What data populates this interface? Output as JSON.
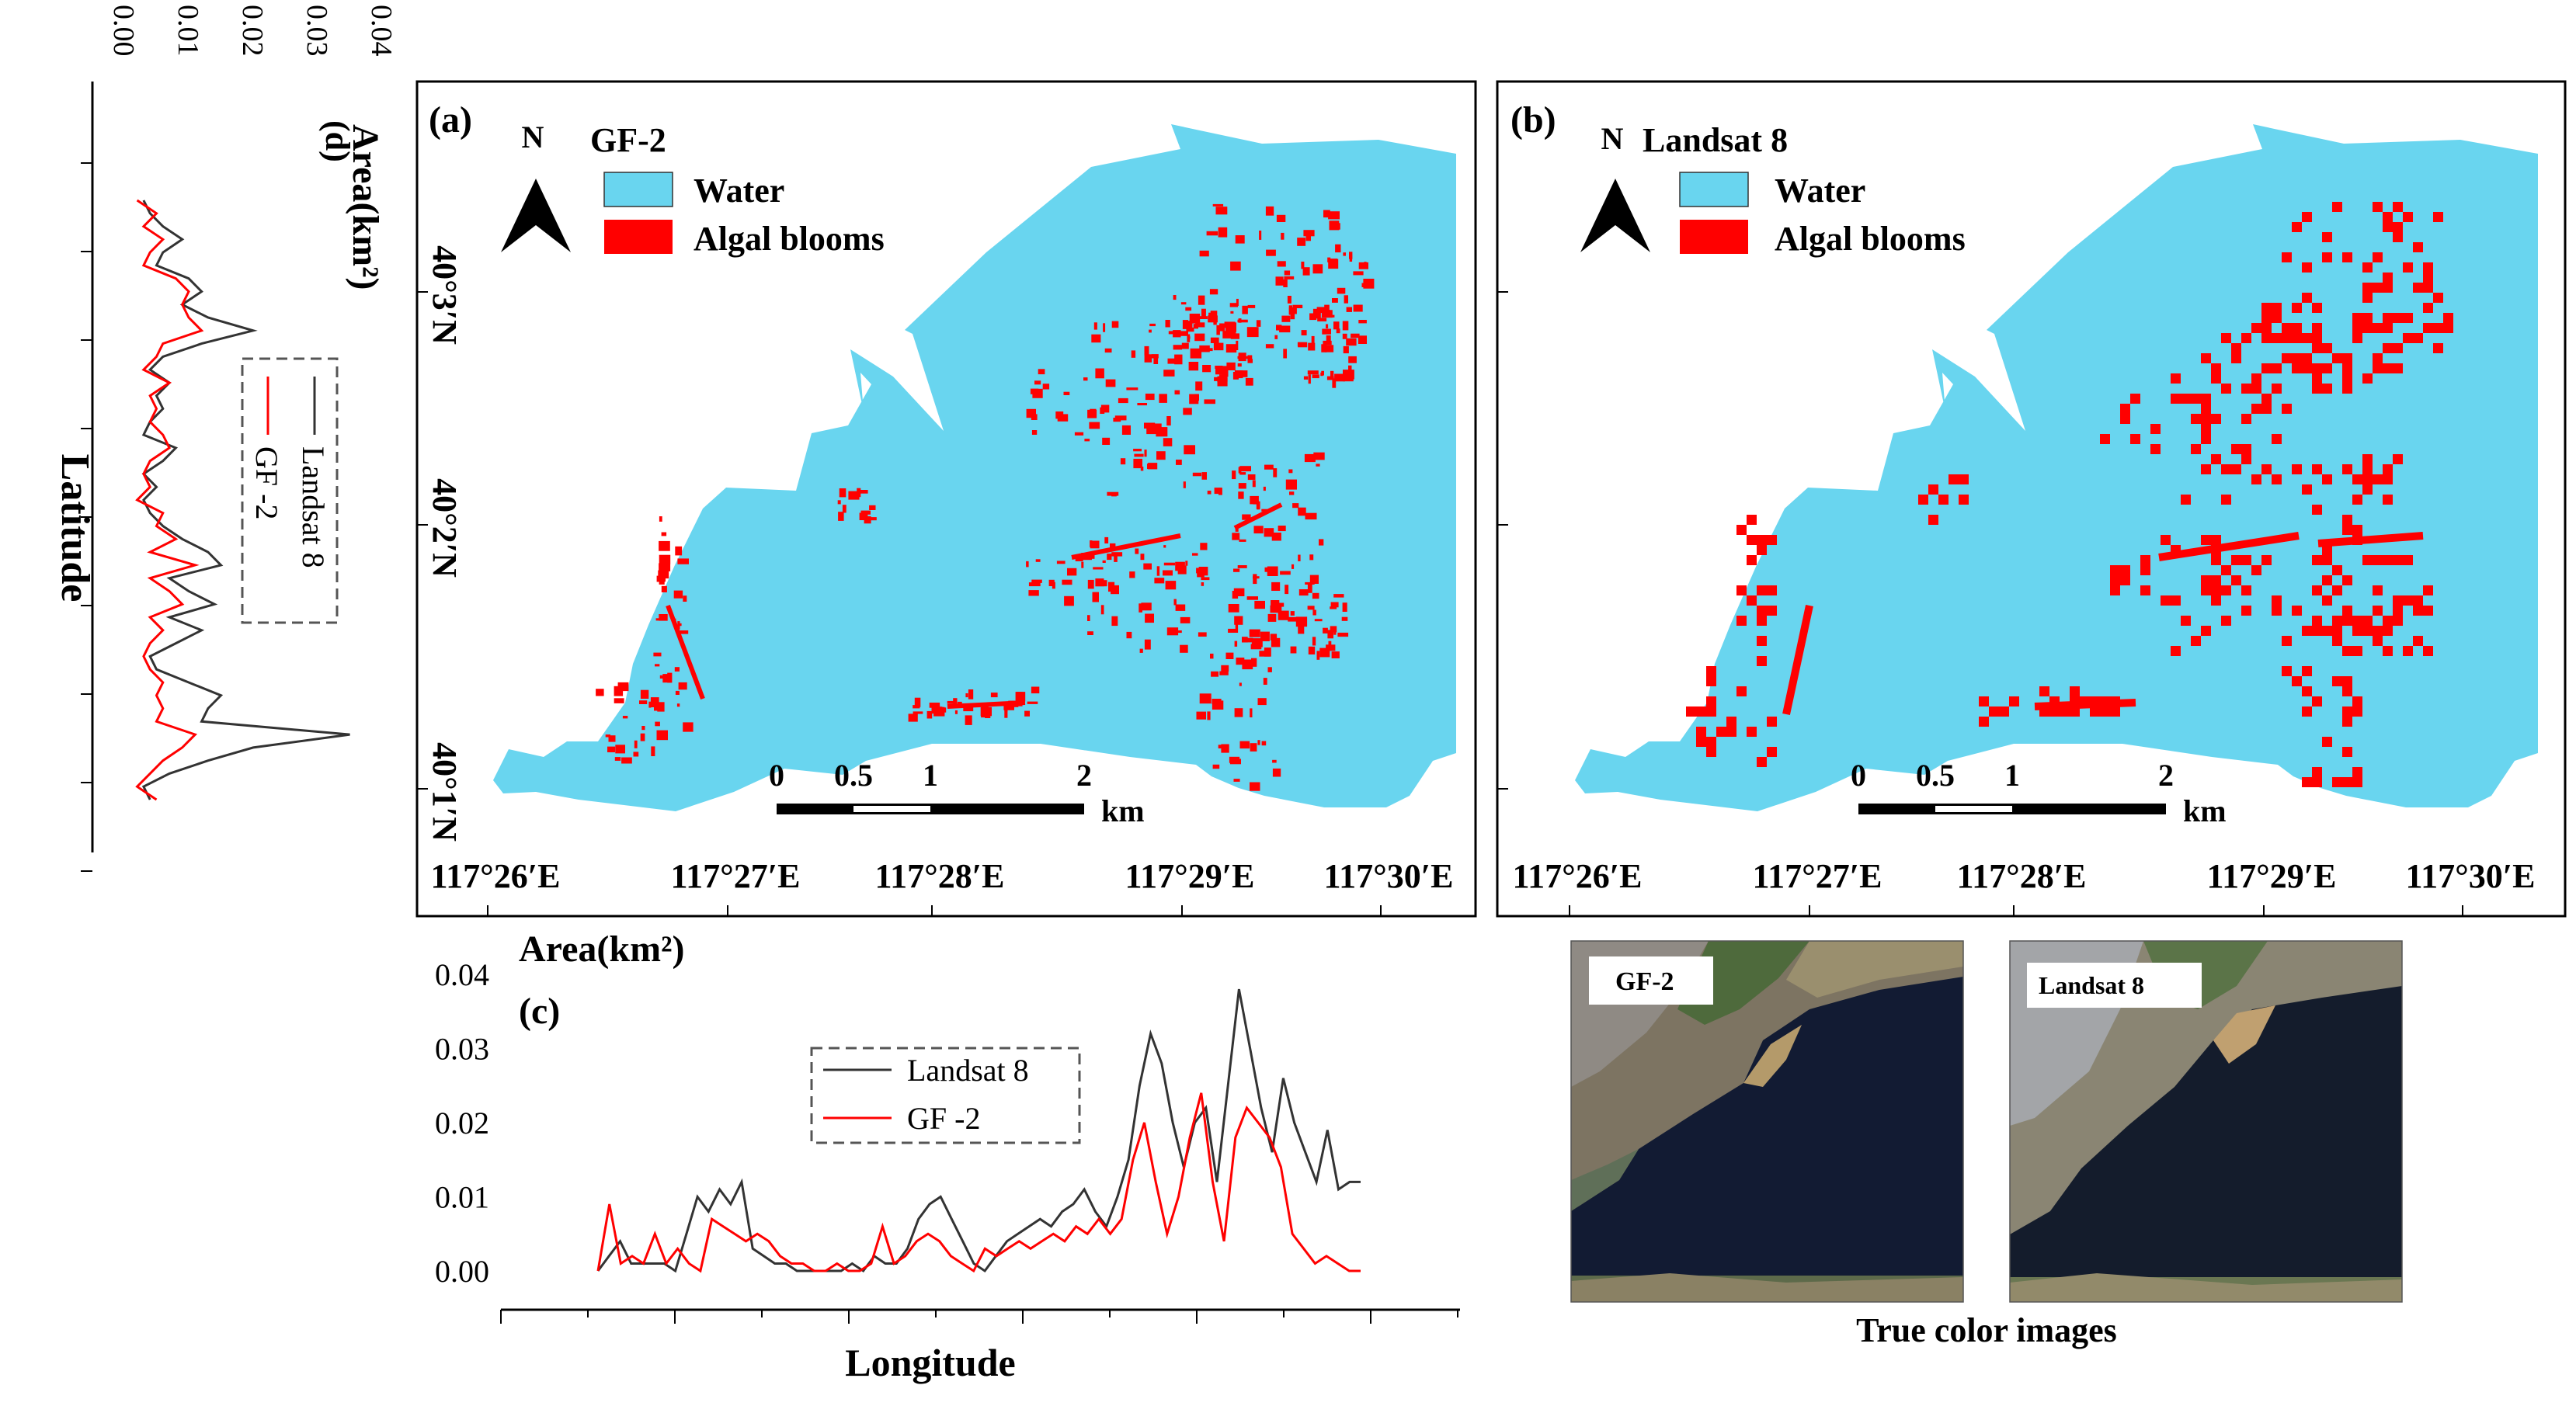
{
  "panel_a": {
    "label": "(a)",
    "north": "N",
    "sensor": "GF-2",
    "legend": [
      {
        "label": "Water",
        "color": "#69d5ef"
      },
      {
        "label": "Algal blooms",
        "color": "#ff0000"
      }
    ]
  },
  "panel_b": {
    "label": "(b)",
    "north": "N",
    "sensor": "Landsat 8",
    "legend": [
      {
        "label": "Water",
        "color": "#69d5ef"
      },
      {
        "label": "Algal blooms",
        "color": "#ff0000"
      }
    ]
  },
  "map_axes": {
    "lon_ticks": [
      "117°26′E",
      "117°27′E",
      "117°28′E",
      "117°29′E",
      "117°30′E"
    ],
    "lat_ticks": [
      "40°3′N",
      "40°2′N",
      "40°1′N"
    ]
  },
  "scale_bar": {
    "ticks": [
      "0",
      "0.5",
      "1",
      "2"
    ],
    "values_km": [
      0,
      0.5,
      1,
      2
    ],
    "unit": "km"
  },
  "true_color": {
    "caption": "True color images",
    "images": [
      "GF-2",
      "Landsat 8"
    ]
  },
  "colors": {
    "water": "#69d5ef",
    "algae": "#ff0000",
    "landsat_line": "#333333",
    "gf2_line": "#ff0000"
  },
  "chart_data": [
    {
      "id": "c",
      "label": "(c)",
      "type": "line",
      "xlabel": "Longitude",
      "ylabel": "Area(km²)",
      "ylim": [
        0,
        0.04
      ],
      "yticks": [
        "0.00",
        "0.01",
        "0.02",
        "0.03",
        "0.04"
      ],
      "legend": "top-center, dashed box",
      "series": [
        {
          "name": "Landsat 8",
          "color": "#333333",
          "values": [
            0.0,
            0.002,
            0.004,
            0.001,
            0.001,
            0.001,
            0.001,
            0.0,
            0.005,
            0.01,
            0.008,
            0.011,
            0.009,
            0.012,
            0.003,
            0.002,
            0.001,
            0.001,
            0.0,
            0.0,
            0.0,
            0.0,
            0.0,
            0.001,
            0.0,
            0.002,
            0.001,
            0.001,
            0.003,
            0.007,
            0.009,
            0.01,
            0.007,
            0.004,
            0.001,
            0.0,
            0.002,
            0.004,
            0.005,
            0.006,
            0.007,
            0.006,
            0.008,
            0.009,
            0.011,
            0.008,
            0.006,
            0.01,
            0.015,
            0.025,
            0.032,
            0.028,
            0.02,
            0.014,
            0.02,
            0.022,
            0.012,
            0.025,
            0.038,
            0.03,
            0.022,
            0.016,
            0.026,
            0.02,
            0.016,
            0.012,
            0.019,
            0.011,
            0.012,
            0.012
          ]
        },
        {
          "name": "GF -2",
          "color": "#ff0000",
          "values": [
            0.0,
            0.009,
            0.001,
            0.002,
            0.001,
            0.005,
            0.001,
            0.003,
            0.001,
            0.0,
            0.007,
            0.006,
            0.005,
            0.004,
            0.005,
            0.004,
            0.002,
            0.001,
            0.001,
            0.0,
            0.0,
            0.001,
            0.0,
            0.0,
            0.001,
            0.006,
            0.001,
            0.002,
            0.004,
            0.005,
            0.004,
            0.002,
            0.001,
            0.0,
            0.003,
            0.002,
            0.003,
            0.004,
            0.003,
            0.004,
            0.005,
            0.004,
            0.006,
            0.005,
            0.007,
            0.005,
            0.007,
            0.015,
            0.02,
            0.012,
            0.005,
            0.01,
            0.018,
            0.024,
            0.012,
            0.004,
            0.018,
            0.022,
            0.02,
            0.018,
            0.014,
            0.005,
            0.003,
            0.001,
            0.002,
            0.001,
            0.0,
            0.0
          ]
        }
      ]
    },
    {
      "id": "d",
      "label": "(d)",
      "type": "line",
      "orientation": "vertical (value axis on top, latitude down)",
      "xlabel": "Area(km²)",
      "ylabel": "Latitude",
      "xlim": [
        0,
        0.04
      ],
      "xticks": [
        "0.00",
        "0.01",
        "0.02",
        "0.03",
        "0.04"
      ],
      "legend": "center, dashed box, rotated",
      "series": [
        {
          "name": "Landsat 8",
          "color": "#333333",
          "values": [
            0.003,
            0.004,
            0.006,
            0.009,
            0.006,
            0.005,
            0.01,
            0.012,
            0.009,
            0.013,
            0.02,
            0.012,
            0.006,
            0.004,
            0.007,
            0.005,
            0.006,
            0.004,
            0.003,
            0.008,
            0.006,
            0.003,
            0.005,
            0.003,
            0.004,
            0.006,
            0.009,
            0.013,
            0.015,
            0.007,
            0.01,
            0.014,
            0.007,
            0.012,
            0.008,
            0.004,
            0.005,
            0.01,
            0.015,
            0.013,
            0.012,
            0.035,
            0.02,
            0.013,
            0.007,
            0.003,
            0.004
          ]
        },
        {
          "name": "GF -2",
          "color": "#ff0000",
          "values": [
            0.002,
            0.005,
            0.003,
            0.006,
            0.004,
            0.003,
            0.008,
            0.01,
            0.009,
            0.01,
            0.012,
            0.006,
            0.005,
            0.003,
            0.007,
            0.004,
            0.005,
            0.004,
            0.006,
            0.007,
            0.004,
            0.003,
            0.004,
            0.002,
            0.006,
            0.005,
            0.008,
            0.004,
            0.011,
            0.004,
            0.007,
            0.009,
            0.004,
            0.006,
            0.004,
            0.003,
            0.004,
            0.006,
            0.005,
            0.006,
            0.005,
            0.011,
            0.009,
            0.006,
            0.004,
            0.002,
            0.005
          ]
        }
      ]
    }
  ]
}
